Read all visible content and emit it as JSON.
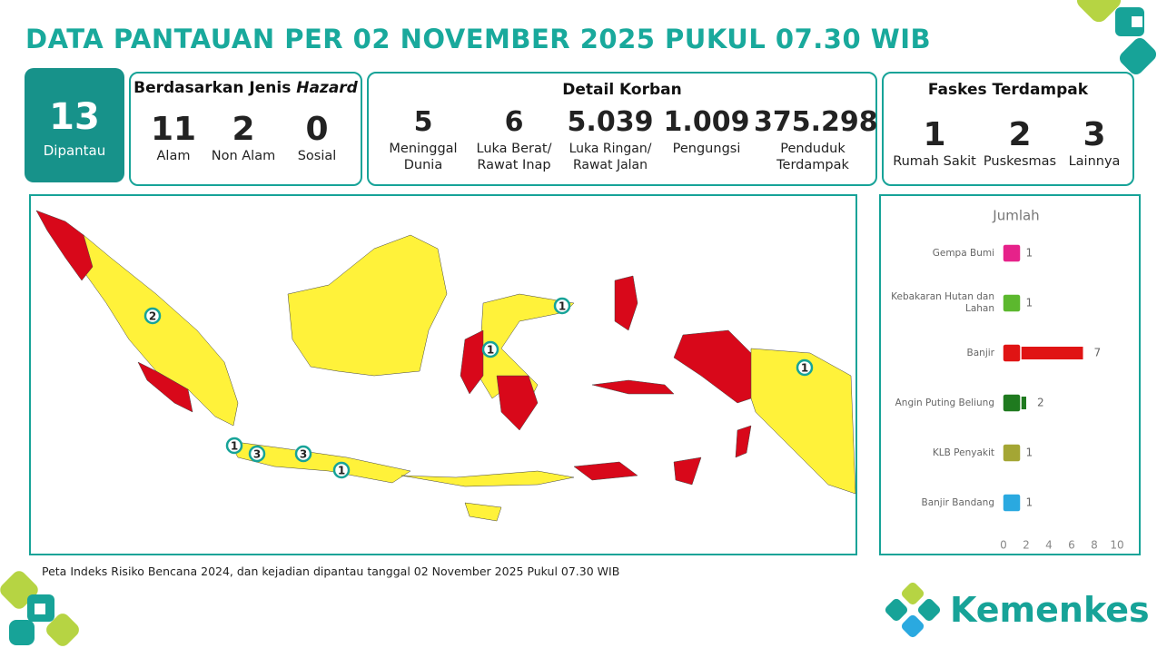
{
  "header": {
    "title": "DATA PANTAUAN PER 02 NOVEMBER 2025 PUKUL 07.30 WIB"
  },
  "summary": {
    "value": "13",
    "label": "Dipantau"
  },
  "hazard": {
    "title_prefix": "Berdasarkan Jenis",
    "title_emphasis": "Hazard",
    "items": [
      {
        "value": "11",
        "label": "Alam"
      },
      {
        "value": "2",
        "label": "Non Alam"
      },
      {
        "value": "0",
        "label": "Sosial"
      }
    ]
  },
  "victims": {
    "title": "Detail Korban",
    "items": [
      {
        "value": "5",
        "label": "Meninggal Dunia"
      },
      {
        "value": "6",
        "label": "Luka Berat/ Rawat Inap"
      },
      {
        "value": "5.039",
        "label": "Luka Ringan/ Rawat Jalan"
      },
      {
        "value": "1.009",
        "label": "Pengungsi"
      },
      {
        "value": "375.298",
        "label": "Penduduk Terdampak"
      }
    ]
  },
  "facilities": {
    "title": "Faskes Terdampak",
    "items": [
      {
        "value": "1",
        "label": "Rumah Sakit"
      },
      {
        "value": "2",
        "label": "Puskesmas"
      },
      {
        "value": "3",
        "label": "Lainnya"
      }
    ]
  },
  "map": {
    "markers": [
      {
        "label": "2"
      },
      {
        "label": "1"
      },
      {
        "label": "3"
      },
      {
        "label": "3"
      },
      {
        "label": "1"
      },
      {
        "label": "1"
      },
      {
        "label": "1"
      },
      {
        "label": "1"
      }
    ],
    "caption": "Peta Indeks Risiko Bencana 2024, dan kejadian dipantau tanggal 02 November 2025 Pukul 07.30 WIB"
  },
  "chart_data": {
    "type": "bar",
    "orientation": "horizontal",
    "title": "Jumlah",
    "categories": [
      "Gempa Bumi",
      "Kebakaran Hutan dan Lahan",
      "Banjir",
      "Angin Puting Beliung",
      "KLB Penyakit",
      "Banjir Bandang"
    ],
    "values": [
      1,
      1,
      7,
      2,
      1,
      1
    ],
    "colors": [
      "#e6228a",
      "#5cb82e",
      "#e01414",
      "#1f7a1f",
      "#a4a634",
      "#2aa9e0"
    ],
    "xlim": [
      0,
      10
    ],
    "xticks": [
      0,
      2,
      4,
      6,
      8,
      10
    ]
  },
  "logo": {
    "text": "Kemenkes"
  }
}
